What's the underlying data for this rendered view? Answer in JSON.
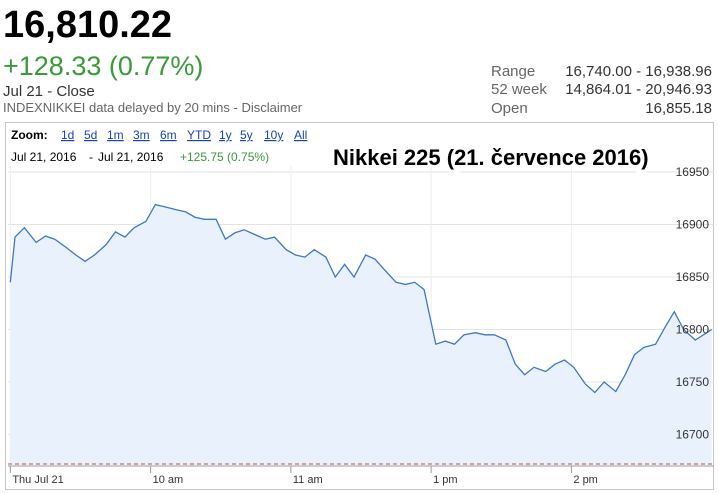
{
  "quote": {
    "price": "16,810.22",
    "change": "+128.33 (0.77%)",
    "close_label": "Jul 21 - Close",
    "note": "INDEXNIKKEI data delayed by 20 mins - ",
    "note_link": "Disclaimer",
    "stats": [
      {
        "label": "Range",
        "value": "16,740.00 - 16,938.96"
      },
      {
        "label": "52 week",
        "value": "14,864.01 - 20,946.93"
      },
      {
        "label": "Open",
        "value": "16,855.18"
      }
    ]
  },
  "toolbar": {
    "zoom_label": "Zoom:",
    "zoom_options": [
      "1d",
      "5d",
      "1m",
      "3m",
      "6m",
      "YTD",
      "1y",
      "5y",
      "10y",
      "All"
    ],
    "date_from": "Jul 21, 2016",
    "date_separator": "-",
    "date_to": "Jul 21, 2016",
    "range_change": "+125.75 (0.75%)"
  },
  "chart_data": {
    "type": "line",
    "title": "Nikkei 225 (21. července 2016)",
    "x": [
      0,
      2,
      6,
      11,
      15,
      19,
      24,
      28,
      32,
      36,
      41,
      45,
      49,
      53,
      58,
      62,
      66,
      71,
      75,
      79,
      83,
      88,
      92,
      96,
      100,
      105,
      109,
      113,
      118,
      122,
      126,
      130,
      135,
      139,
      143,
      147,
      152,
      156,
      160,
      165,
      169,
      173,
      177,
      182,
      186,
      190,
      194,
      199,
      203,
      207,
      212,
      216,
      220,
      224,
      229,
      233,
      237,
      241,
      246,
      250,
      254,
      259,
      263,
      267,
      271,
      276,
      280,
      284,
      288,
      293,
      300
    ],
    "values": [
      16845,
      16888,
      16897,
      16883,
      16889,
      16886,
      16878,
      16871,
      16865,
      16871,
      16881,
      16893,
      16888,
      16897,
      16903,
      16919,
      16917,
      16914,
      16912,
      16907,
      16905,
      16905,
      16886,
      16892,
      16895,
      16890,
      16886,
      16888,
      16876,
      16871,
      16869,
      16876,
      16869,
      16850,
      16862,
      16850,
      16871,
      16867,
      16857,
      16845,
      16843,
      16845,
      16838,
      16786,
      16789,
      16786,
      16795,
      16797,
      16795,
      16795,
      16790,
      16767,
      16757,
      16764,
      16760,
      16767,
      16771,
      16764,
      16748,
      16740,
      16750,
      16741,
      16757,
      16776,
      16783,
      16786,
      16802,
      16817,
      16800,
      16790,
      16800
    ],
    "color": "#3d77c6",
    "area_color": "#e9f2fc",
    "xlim": [
      -1,
      301
    ],
    "xticks": [
      {
        "value": 0,
        "label": "Thu Jul 21"
      },
      {
        "value": 60,
        "label": "10 am"
      },
      {
        "value": 120,
        "label": "11 am"
      },
      {
        "value": 180,
        "label": "1 pm"
      },
      {
        "value": 240,
        "label": "2 pm"
      }
    ],
    "ylim": [
      16671,
      16950
    ],
    "yticks": [
      16700,
      16750,
      16800,
      16850,
      16900,
      16950
    ],
    "grid": true
  }
}
